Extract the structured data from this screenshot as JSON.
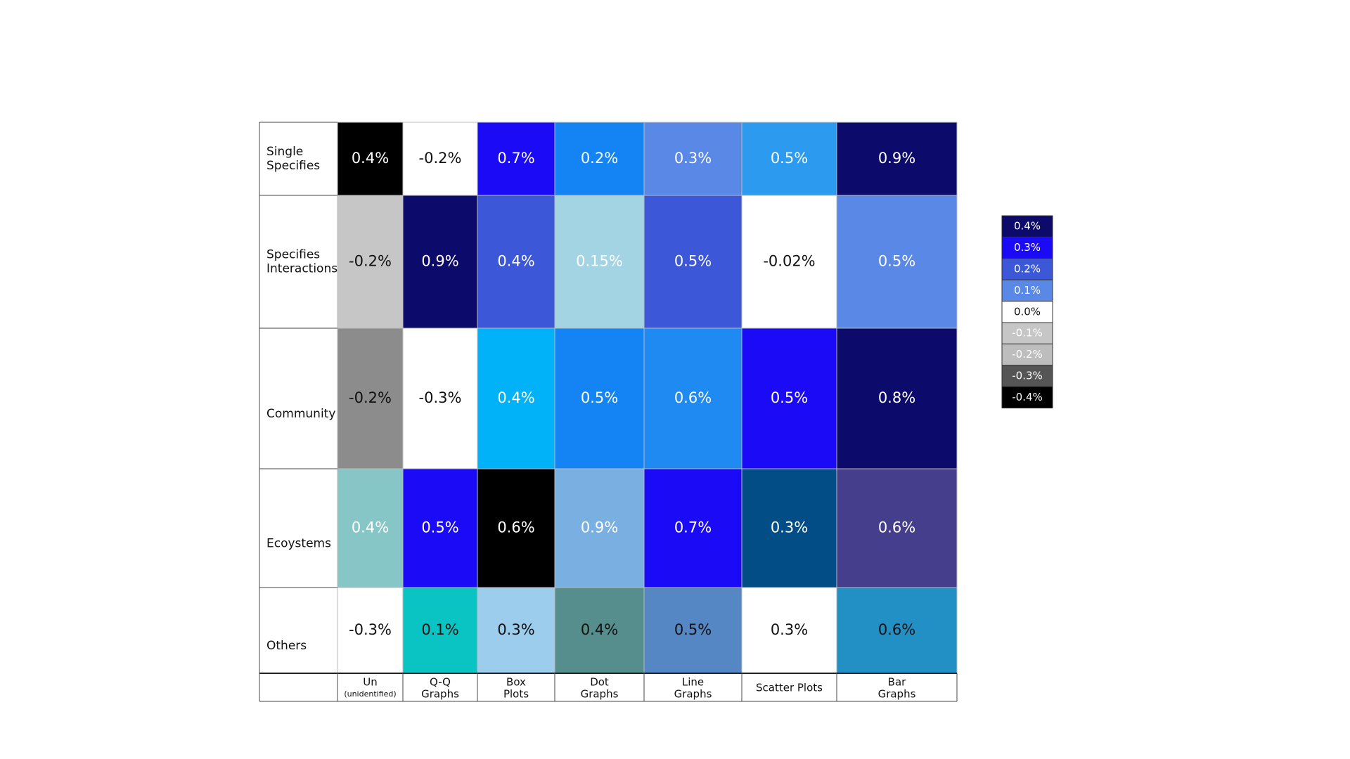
{
  "chart_data": {
    "type": "heatmap",
    "row_labels": [
      [
        "Single",
        "Specifies"
      ],
      [
        "Specifies",
        "Interactions"
      ],
      [
        "Community"
      ],
      [
        "Ecoystems"
      ],
      [
        "Others"
      ]
    ],
    "column_labels": [
      [
        "Un",
        "(unidentified)"
      ],
      [
        "Q-Q",
        "Graphs"
      ],
      [
        "Box",
        "Plots"
      ],
      [
        "Dot",
        "Graphs"
      ],
      [
        "Line",
        "Graphs"
      ],
      [
        "Scatter Plots"
      ],
      [
        "Bar",
        "Graphs"
      ]
    ],
    "values": [
      [
        0.4,
        -0.2,
        0.7,
        0.2,
        0.3,
        0.5,
        0.9
      ],
      [
        -0.2,
        0.9,
        0.4,
        0.15,
        0.5,
        -0.02,
        0.5
      ],
      [
        -0.2,
        -0.3,
        0.4,
        0.5,
        0.6,
        0.5,
        0.8
      ],
      [
        0.4,
        0.5,
        0.6,
        0.9,
        0.7,
        0.3,
        0.6
      ],
      [
        -0.3,
        0.1,
        0.3,
        0.4,
        0.5,
        0.3,
        0.6
      ]
    ],
    "value_labels": [
      [
        "0.4%",
        "-0.2%",
        "0.7%",
        "0.2%",
        "0.3%",
        "0.5%",
        "0.9%"
      ],
      [
        "-0.2%",
        "0.9%",
        "0.4%",
        "0.15%",
        "0.5%",
        "-0.02%",
        "0.5%"
      ],
      [
        "-0.2%",
        "-0.3%",
        "0.4%",
        "0.5%",
        "0.6%",
        "0.5%",
        "0.8%"
      ],
      [
        "0.4%",
        "0.5%",
        "0.6%",
        "0.9%",
        "0.7%",
        "0.3%",
        "0.6%"
      ],
      [
        "-0.3%",
        "0.1%",
        "0.3%",
        "0.4%",
        "0.5%",
        "0.3%",
        "0.6%"
      ]
    ],
    "colors": [
      [
        "#000000",
        "#ffffff",
        "#1a0af5",
        "#1484f5",
        "#5a88e6",
        "#2b9aef",
        "#0c0a6a"
      ],
      [
        "#c6c6c6",
        "#0c0a6a",
        "#3c58d8",
        "#a3d4e3",
        "#3c58d8",
        "#ffffff",
        "#5a88e6"
      ],
      [
        "#8c8c8c",
        "#ffffff",
        "#02b2f8",
        "#1484f5",
        "#208af3",
        "#1a0af5",
        "#0c0a6a"
      ],
      [
        "#86c6c6",
        "#1a0af5",
        "#000000",
        "#7aafe2",
        "#1a0af5",
        "#034d86",
        "#453e8d"
      ],
      [
        "#ffffff",
        "#0ac4c4",
        "#9ccdec",
        "#558e8c",
        "#5487c3",
        "#ffffff",
        "#2390c5"
      ]
    ],
    "label_colors": [
      [
        "#ffffff",
        "#111111",
        "#ffffff",
        "#ffffff",
        "#ffffff",
        "#ffffff",
        "#ffffff"
      ],
      [
        "#111111",
        "#ffffff",
        "#ffffff",
        "#ffffff",
        "#ffffff",
        "#111111",
        "#ffffff"
      ],
      [
        "#111111",
        "#111111",
        "#ffffff",
        "#ffffff",
        "#ffffff",
        "#ffffff",
        "#ffffff"
      ],
      [
        "#ffffff",
        "#ffffff",
        "#ffffff",
        "#ffffff",
        "#ffffff",
        "#ffffff",
        "#ffffff"
      ],
      [
        "#111111",
        "#111111",
        "#111111",
        "#111111",
        "#111111",
        "#111111",
        "#111111"
      ]
    ],
    "legend": {
      "values": [
        0.4,
        0.3,
        0.2,
        0.1,
        0.0,
        -0.1,
        -0.2,
        -0.3,
        -0.4
      ],
      "value_labels": [
        "0.4%",
        "0.3%",
        "0.2%",
        "0.1%",
        "0.0%",
        "-0.1%",
        "-0.2%",
        "-0.3%",
        "-0.4%"
      ],
      "colors": [
        "#0c0a6a",
        "#1a0af5",
        "#3c58d8",
        "#5a88e6",
        "#ffffff",
        "#c6c6c6",
        "#bdbdbd",
        "#555555",
        "#000000"
      ]
    }
  }
}
